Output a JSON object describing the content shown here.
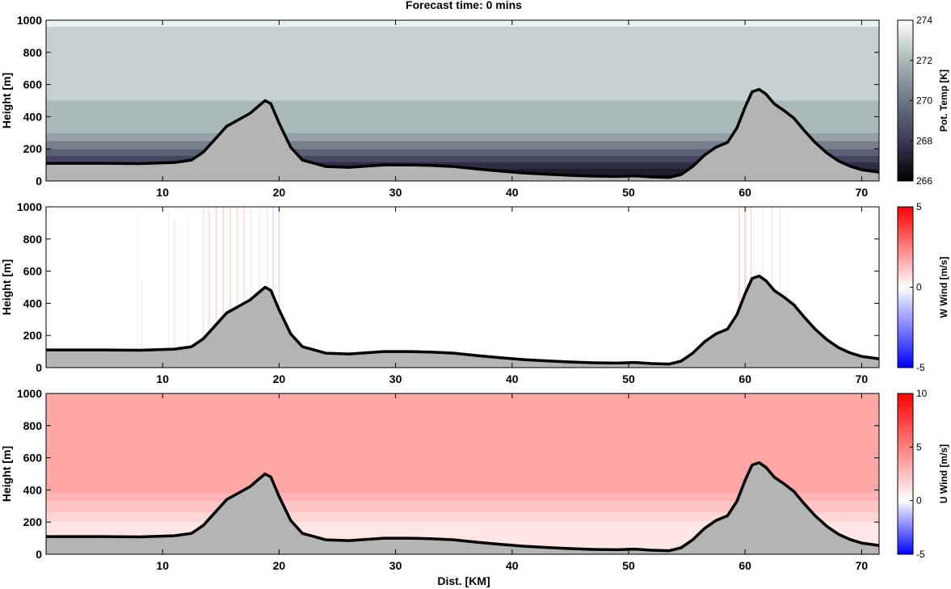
{
  "figure": {
    "title": "Forecast time: 0 mins",
    "xlabel": "Dist. [KM]",
    "colors": {
      "terrain_fill": "#b4b4b4",
      "terrain_line": "#000000",
      "axes_box": "#000000"
    }
  },
  "chart_data": [
    {
      "type": "heatmap",
      "field": "potential_temperature",
      "ylabel": "Height [m]",
      "xlim": [
        0,
        71.5
      ],
      "ylim": [
        0,
        1000
      ],
      "xticks": [
        10,
        20,
        30,
        40,
        50,
        60,
        70
      ],
      "yticks": [
        0,
        200,
        400,
        600,
        800,
        1000
      ],
      "colorbar": {
        "label": "Pot. Temp [K]",
        "range": [
          266,
          274
        ],
        "ticks": [
          266,
          268,
          270,
          272,
          274
        ],
        "colors": [
          "#000000",
          "#3a3a56",
          "#6e7585",
          "#a9b8b8",
          "#ffffff"
        ]
      },
      "layers": [
        {
          "zmin": 0,
          "zmax": 40,
          "value": 266.5
        },
        {
          "zmin": 40,
          "zmax": 80,
          "value": 267.0
        },
        {
          "zmin": 80,
          "zmax": 120,
          "value": 267.6
        },
        {
          "zmin": 120,
          "zmax": 160,
          "value": 268.4
        },
        {
          "zmin": 160,
          "zmax": 200,
          "value": 269.3
        },
        {
          "zmin": 200,
          "zmax": 250,
          "value": 270.3
        },
        {
          "zmin": 250,
          "zmax": 300,
          "value": 271.3
        },
        {
          "zmin": 300,
          "zmax": 500,
          "value": 272.0
        },
        {
          "zmin": 500,
          "zmax": 960,
          "value": 272.7
        },
        {
          "zmin": 960,
          "zmax": 1000,
          "value": 273.6
        }
      ]
    },
    {
      "type": "heatmap",
      "field": "w_wind",
      "ylabel": "Height [m]",
      "xlim": [
        0,
        71.5
      ],
      "ylim": [
        0,
        1000
      ],
      "xticks": [
        10,
        20,
        30,
        40,
        50,
        60,
        70
      ],
      "yticks": [
        0,
        200,
        400,
        600,
        800,
        1000
      ],
      "colorbar": {
        "label": "W Wind [m/s]",
        "range": [
          -5,
          5
        ],
        "ticks": [
          -5,
          0,
          5
        ],
        "colors": [
          "#0000ff",
          "#ffffff",
          "#ff0000"
        ]
      },
      "layers": [
        {
          "zmin": 0,
          "zmax": 1000,
          "value": 0
        }
      ],
      "streaks": [
        {
          "x": 7.8,
          "value": 0.3,
          "ztop": 1000
        },
        {
          "x": 8.2,
          "value": 0.5,
          "ztop": 560
        },
        {
          "x": 10.5,
          "value": 0.4,
          "ztop": 980
        },
        {
          "x": 11.0,
          "value": 0.6,
          "ztop": 920
        },
        {
          "x": 12.2,
          "value": 0.5,
          "ztop": 950
        },
        {
          "x": 13.5,
          "value": 0.8,
          "ztop": 1000
        },
        {
          "x": 14.0,
          "value": 1.0,
          "ztop": 1000
        },
        {
          "x": 14.6,
          "value": 1.1,
          "ztop": 1000
        },
        {
          "x": 15.2,
          "value": 1.2,
          "ztop": 1000
        },
        {
          "x": 15.8,
          "value": 1.0,
          "ztop": 1000
        },
        {
          "x": 16.4,
          "value": 0.9,
          "ztop": 1000
        },
        {
          "x": 17.0,
          "value": 0.8,
          "ztop": 1000
        },
        {
          "x": 17.6,
          "value": 0.6,
          "ztop": 1000
        },
        {
          "x": 18.3,
          "value": 0.5,
          "ztop": 1000
        },
        {
          "x": 19.0,
          "value": -0.6,
          "ztop": 1000
        },
        {
          "x": 19.5,
          "value": -0.9,
          "ztop": 1000
        },
        {
          "x": 20.0,
          "value": -1.0,
          "ztop": 1000
        },
        {
          "x": 59.5,
          "value": 1.2,
          "ztop": 1000
        },
        {
          "x": 60.0,
          "value": 1.4,
          "ztop": 1000
        },
        {
          "x": 60.5,
          "value": 1.0,
          "ztop": 1000
        },
        {
          "x": 61.5,
          "value": -0.4,
          "ztop": 1000
        },
        {
          "x": 62.3,
          "value": -0.6,
          "ztop": 1000
        },
        {
          "x": 63.0,
          "value": -0.5,
          "ztop": 1000
        },
        {
          "x": 63.6,
          "value": -0.3,
          "ztop": 950
        }
      ]
    },
    {
      "type": "heatmap",
      "field": "u_wind",
      "ylabel": "Height [m]",
      "xlim": [
        0,
        71.5
      ],
      "ylim": [
        0,
        1000
      ],
      "xticks": [
        10,
        20,
        30,
        40,
        50,
        60,
        70
      ],
      "yticks": [
        0,
        200,
        400,
        600,
        800,
        1000
      ],
      "colorbar": {
        "label": "U Wind [m/s]",
        "range": [
          -5,
          10
        ],
        "ticks": [
          -5,
          0,
          5,
          10
        ],
        "colors": [
          "#0000ff",
          "#ffffff",
          "#ff0000"
        ]
      },
      "layers": [
        {
          "zmin": 0,
          "zmax": 200,
          "value": 1.0
        },
        {
          "zmin": 200,
          "zmax": 260,
          "value": 1.6
        },
        {
          "zmin": 260,
          "zmax": 330,
          "value": 2.3
        },
        {
          "zmin": 330,
          "zmax": 380,
          "value": 3.0
        },
        {
          "zmin": 380,
          "zmax": 1000,
          "value": 3.5
        }
      ]
    }
  ],
  "terrain": {
    "x": [
      0,
      5,
      8,
      11,
      12.5,
      13.5,
      14.5,
      15.5,
      16.5,
      17.5,
      18.3,
      18.8,
      19.3,
      20,
      21,
      22,
      24,
      26,
      28,
      29,
      31,
      33,
      35,
      37,
      39,
      41,
      43,
      45,
      47,
      49,
      50.5,
      52,
      53.5,
      54.5,
      55.5,
      56.5,
      57.5,
      58.5,
      59.3,
      60,
      60.6,
      61.2,
      61.8,
      62.5,
      63.3,
      64.2,
      65,
      66,
      67,
      68,
      69,
      70,
      71.5
    ],
    "height": [
      110,
      110,
      108,
      115,
      130,
      180,
      260,
      340,
      380,
      420,
      470,
      500,
      480,
      360,
      210,
      130,
      90,
      85,
      95,
      100,
      100,
      97,
      90,
      75,
      62,
      50,
      42,
      35,
      30,
      28,
      32,
      25,
      22,
      40,
      90,
      160,
      210,
      240,
      330,
      460,
      555,
      570,
      540,
      480,
      440,
      390,
      320,
      240,
      175,
      125,
      92,
      70,
      55
    ]
  }
}
